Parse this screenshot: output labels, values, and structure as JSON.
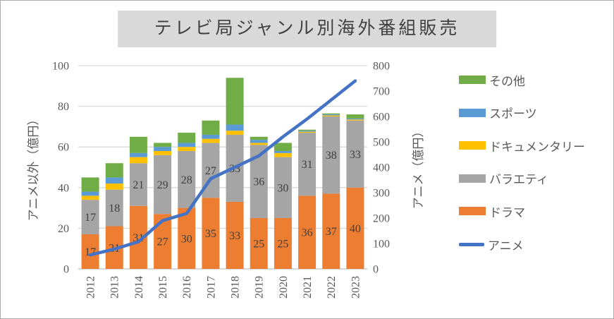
{
  "title": "テレビ局ジャンル別海外番組販売",
  "colors": {
    "title_bg": "#D9D9D9",
    "title_text": "#404040",
    "axis_text": "#595959",
    "data_label_text": "#404040",
    "gridline": "#D9D9D9",
    "axis_line": "#BFBFBF",
    "drama": "#ED7D31",
    "variety": "#A5A5A5",
    "documentary": "#FFC000",
    "sports": "#5B9BD5",
    "other": "#70AD47",
    "anime_line": "#4472C4"
  },
  "chart_data": {
    "type": "combo: stacked bar (left axis) + line (right axis)",
    "categories": [
      "2012",
      "2013",
      "2014",
      "2015",
      "2016",
      "2017",
      "2018",
      "2019",
      "2020",
      "2021",
      "2022",
      "2023"
    ],
    "bar_series": [
      {
        "key": "drama",
        "name": "ドラマ",
        "color": "#ED7D31",
        "labels_shown": true,
        "values": [
          17,
          21,
          31,
          27,
          30,
          35,
          33,
          25,
          25,
          36,
          37,
          40
        ]
      },
      {
        "key": "variety",
        "name": "バラエティ",
        "color": "#A5A5A5",
        "labels_shown": true,
        "values": [
          17,
          18,
          21,
          29,
          28,
          27,
          33,
          36,
          30,
          31,
          38,
          33
        ]
      },
      {
        "key": "documentary",
        "name": "ドキュメンタリー",
        "color": "#FFC000",
        "labels_shown": false,
        "values": [
          2,
          3,
          3,
          2,
          2,
          2,
          2,
          1,
          2,
          0.5,
          0.5,
          0.5
        ]
      },
      {
        "key": "sports",
        "name": "スポーツ",
        "color": "#5B9BD5",
        "labels_shown": false,
        "values": [
          2,
          3,
          2,
          2,
          2,
          2,
          3,
          1.5,
          1,
          0.5,
          0.5,
          0.5
        ]
      },
      {
        "key": "other",
        "name": "その他",
        "color": "#70AD47",
        "labels_shown": false,
        "values": [
          7,
          7,
          8,
          2,
          5,
          7,
          23,
          1.5,
          4,
          0.5,
          0.5,
          2
        ]
      }
    ],
    "bar_totals_estimated": [
      45,
      52,
      65,
      62,
      67,
      73,
      94,
      65,
      62,
      68.5,
      76.5,
      76
    ],
    "line_series": {
      "key": "anime",
      "name": "アニメ",
      "color": "#4472C4",
      "axis": "right",
      "values": [
        55,
        78,
        107,
        190,
        218,
        355,
        400,
        445,
        520,
        590,
        665,
        740
      ]
    },
    "left_axis": {
      "title": "アニメ以外（億円）",
      "min": 0,
      "max": 100,
      "step": 20,
      "ticks": [
        "0",
        "20",
        "40",
        "60",
        "80",
        "100"
      ]
    },
    "right_axis": {
      "title": "アニメ（億円）",
      "min": 0,
      "max": 800,
      "step": 100,
      "ticks": [
        "0",
        "100",
        "200",
        "300",
        "400",
        "500",
        "600",
        "700",
        "800"
      ]
    },
    "legend_position": "right",
    "grid": true,
    "legend": [
      {
        "key": "other",
        "label": "その他",
        "swatch": "rect",
        "color": "#70AD47"
      },
      {
        "key": "sports",
        "label": "スポーツ",
        "swatch": "rect",
        "color": "#5B9BD5"
      },
      {
        "key": "documentary",
        "label": "ドキュメンタリー",
        "swatch": "rect",
        "color": "#FFC000"
      },
      {
        "key": "variety",
        "label": "バラエティ",
        "swatch": "rect",
        "color": "#A5A5A5"
      },
      {
        "key": "drama",
        "label": "ドラマ",
        "swatch": "rect",
        "color": "#ED7D31"
      },
      {
        "key": "anime",
        "label": "アニメ",
        "swatch": "line",
        "color": "#4472C4"
      }
    ]
  }
}
